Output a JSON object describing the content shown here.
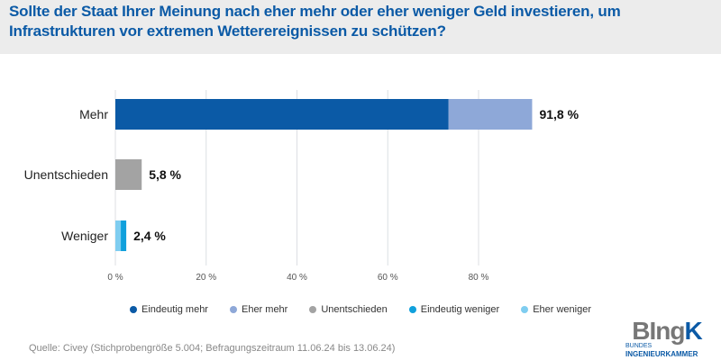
{
  "chart_data": {
    "type": "bar",
    "orientation": "horizontal",
    "stacked": true,
    "title": "Sollte der Staat Ihrer Meinung nach eher mehr oder eher weniger Geld investieren, um Infrastrukturen vor extremen Wetterereignissen zu schützen?",
    "categories": [
      "Mehr",
      "Unentschieden",
      "Weniger"
    ],
    "series": [
      {
        "name": "Eindeutig mehr",
        "color": "#0b5aa6",
        "values": [
          73.4,
          0,
          0
        ]
      },
      {
        "name": "Eher mehr",
        "color": "#8ea8d8",
        "values": [
          18.4,
          0,
          0
        ]
      },
      {
        "name": "Unentschieden",
        "color": "#a3a3a3",
        "values": [
          0,
          5.8,
          0
        ]
      },
      {
        "name": "Eher weniger",
        "color": "#7fcdf0",
        "values": [
          0,
          0,
          1.2
        ]
      },
      {
        "name": "Eindeutig weniger",
        "color": "#10a0dc",
        "values": [
          0,
          0,
          1.2
        ]
      }
    ],
    "totals_labels": [
      "91,8 %",
      "5,8 %",
      "2,4 %"
    ],
    "xlim": [
      0,
      100
    ],
    "xticks": [
      0,
      20,
      40,
      60,
      80
    ],
    "xtick_labels": [
      "0 %",
      "20 %",
      "40 %",
      "60 %",
      "80 %"
    ],
    "grid": true,
    "legend_position": "bottom",
    "legend_order": [
      "Eindeutig mehr",
      "Eher mehr",
      "Unentschieden",
      "Eindeutig weniger",
      "Eher weniger"
    ]
  },
  "source": "Quelle: Civey (Stichprobengröße 5.004; Befragungszeitraum 11.06.24 bis 13.06.24)",
  "logo": {
    "main_a": "BIng",
    "main_b": "K",
    "sub1": "BUNDES",
    "sub2": "INGENIEURKAMMER"
  }
}
